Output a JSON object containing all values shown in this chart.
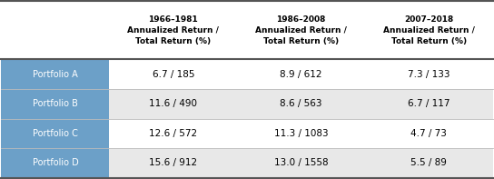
{
  "col_headers": [
    "1966–1981\nAnnualized Return /\nTotal Return (%)",
    "1986–2008\nAnnualized Return /\nTotal Return (%)",
    "2007–2018\nAnnualized Return /\nTotal Return (%)"
  ],
  "row_labels": [
    "Portfolio A",
    "Portfolio B",
    "Portfolio C",
    "Portfolio D"
  ],
  "cell_data": [
    [
      "6.7 / 185",
      "8.9 / 612",
      "7.3 / 133"
    ],
    [
      "11.6 / 490",
      "8.6 / 563",
      "6.7 / 117"
    ],
    [
      "12.6 / 572",
      "11.3 / 1083",
      "4.7 / 73"
    ],
    [
      "15.6 / 912",
      "13.0 / 1558",
      "5.5 / 89"
    ]
  ],
  "row_label_bg": "#6ca0c8",
  "row_label_color": "#ffffff",
  "row_bg_odd": "#ffffff",
  "row_bg_even": "#e8e8e8",
  "header_bg": "#ffffff",
  "header_color": "#000000",
  "cell_color": "#000000",
  "figsize": [
    5.44,
    1.97
  ],
  "dpi": 100
}
